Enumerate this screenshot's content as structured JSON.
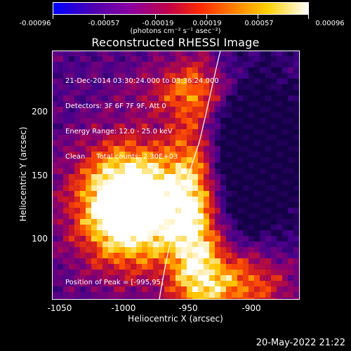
{
  "colorbar": {
    "tick_labels": [
      "-0.00096",
      "-0.00057",
      "-0.00019",
      "0.00019",
      "0.00057",
      "0.00096"
    ],
    "units": "(photons cm⁻² s⁻¹ asec⁻²)"
  },
  "title": "Reconstructed RHESSI Image",
  "info_lines": {
    "line1": "21-Dec-2014 03:30:24.000 to 03:36:24.000",
    "line2": "Detectors: 3F 6F 7F 9F, Att 0",
    "line3": "Energy Range: 12.0 - 25.0 keV",
    "line4": "Clean     Total counts: 2.30E+03"
  },
  "peak_text": "Position of Peak = [-995,95]",
  "axes": {
    "x_label": "Heliocentric X (arcsec)",
    "y_label": "Heliocentric Y (arcsec)",
    "x_ticks": [
      "-1050",
      "-1000",
      "-950",
      "-900"
    ],
    "y_ticks": [
      "200",
      "150",
      "100"
    ]
  },
  "timestamp": "20-May-2022 21:22",
  "colors": {
    "background": "#000000",
    "foreground": "#ffffff"
  }
}
